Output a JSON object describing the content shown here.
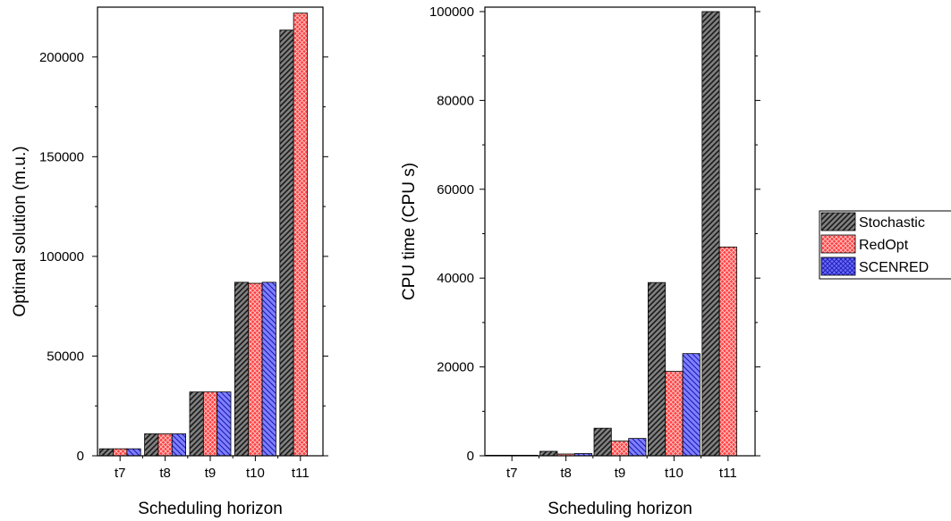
{
  "chart_data": [
    {
      "type": "bar",
      "categories": [
        "t7",
        "t8",
        "t9",
        "t10",
        "t11"
      ],
      "xlabel": "Scheduling horizon",
      "ylabel": "Optimal solution (m.u.)",
      "ylim": [
        0,
        225000
      ],
      "yticks": [
        "0",
        "50000",
        "100000",
        "150000",
        "200000"
      ],
      "ytick_values": [
        0,
        50000,
        100000,
        150000,
        200000
      ],
      "grid": false,
      "series": [
        {
          "name": "Stochastic",
          "values": [
            3500,
            11000,
            32000,
            87000,
            213500
          ]
        },
        {
          "name": "RedOpt",
          "values": [
            3500,
            11000,
            32000,
            86500,
            222000
          ]
        },
        {
          "name": "SCENRED",
          "values": [
            3500,
            11000,
            32000,
            87000,
            null
          ]
        }
      ]
    },
    {
      "type": "bar",
      "categories": [
        "t7",
        "t8",
        "t9",
        "t10",
        "t11"
      ],
      "xlabel": "Scheduling horizon",
      "ylabel": "CPU time (CPU s)",
      "ylim": [
        0,
        101000
      ],
      "yticks": [
        "0",
        "20000",
        "40000",
        "60000",
        "80000",
        "100000"
      ],
      "ytick_values": [
        0,
        20000,
        40000,
        60000,
        80000,
        100000
      ],
      "grid": false,
      "series": [
        {
          "name": "Stochastic",
          "values": [
            100,
            1000,
            6200,
            39000,
            100000
          ]
        },
        {
          "name": "RedOpt",
          "values": [
            50,
            400,
            3300,
            19000,
            47000
          ]
        },
        {
          "name": "SCENRED",
          "values": [
            50,
            500,
            3900,
            23000,
            null
          ]
        }
      ]
    }
  ],
  "legend": {
    "position": "right",
    "items": [
      {
        "label": "Stochastic",
        "color": "#808080"
      },
      {
        "label": "RedOpt",
        "color": "#ff4040"
      },
      {
        "label": "SCENRED",
        "color": "#7a7aff"
      }
    ]
  },
  "colors": {
    "Stochastic": "#808080",
    "RedOpt": "#ff4040",
    "SCENRED": "#7a7aff"
  }
}
